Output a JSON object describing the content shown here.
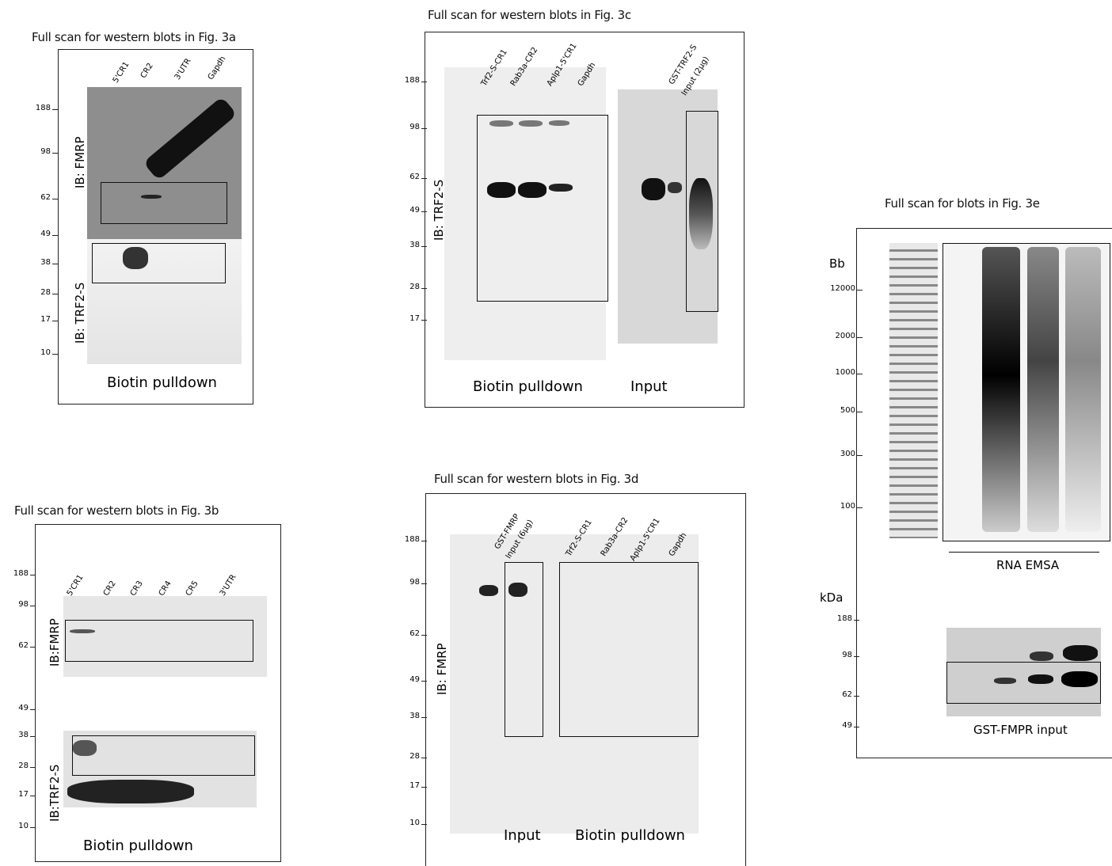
{
  "panels": [
    {
      "title": "Full scan for western blots in Fig. 3a",
      "markers": [
        "188",
        "98",
        "62",
        "49",
        "38",
        "28",
        "17",
        "10"
      ],
      "lanes": [
        "5'CR1",
        "CR2",
        "3'UTR",
        "Gapdh"
      ],
      "antibodies": [
        "IB: FMRP",
        "IB: TRF2-S"
      ],
      "footers": [
        "Biotin pulldown"
      ]
    },
    {
      "title": "Full scan for western blots in Fig. 3b",
      "markers": [
        "188",
        "98",
        "62",
        "49",
        "38",
        "28",
        "17",
        "10"
      ],
      "lanes": [
        "5'CR1",
        "CR2",
        "CR3",
        "CR4",
        "CR5",
        "3'UTR"
      ],
      "antibodies": [
        "IB:FMRP",
        "IB:TRF2-S"
      ],
      "footers": [
        "Biotin pulldown"
      ]
    },
    {
      "title": "Full scan for western blots in Fig. 3c",
      "markers": [
        "188",
        "98",
        "62",
        "49",
        "38",
        "28",
        "17"
      ],
      "lanes": [
        "Trf2-S-CR1",
        "Rab3a-CR2",
        "Aplp1-5'CR1",
        "Gapdh",
        "GST-TRF2-S",
        "Input (2μg)"
      ],
      "antibodies": [
        "IB: TRF2-S"
      ],
      "footers": [
        "Biotin pulldown",
        "Input"
      ]
    },
    {
      "title": "Full scan for western blots in Fig. 3d",
      "markers": [
        "188",
        "98",
        "62",
        "49",
        "38",
        "28",
        "17",
        "10"
      ],
      "lanes": [
        "GST-FMRP",
        "Input (6μg)",
        "Trf2-S-CR1",
        "Rab3a-CR2",
        "Aplp1-5'CR1",
        "Gapdh"
      ],
      "antibodies": [
        "IB: FMRP"
      ],
      "footers": [
        "Input",
        "Biotin pulldown"
      ]
    },
    {
      "title": "Full scan for  blots in Fig. 3e",
      "unit_rna": "Bb",
      "markers": [
        "12000",
        "2000",
        "1000",
        "500",
        "300",
        "100"
      ],
      "unit_protein": "kDa",
      "markers_protein": [
        "188",
        "98",
        "62",
        "49"
      ],
      "footers": [
        "RNA EMSA",
        "GST-FMPR input"
      ]
    }
  ]
}
